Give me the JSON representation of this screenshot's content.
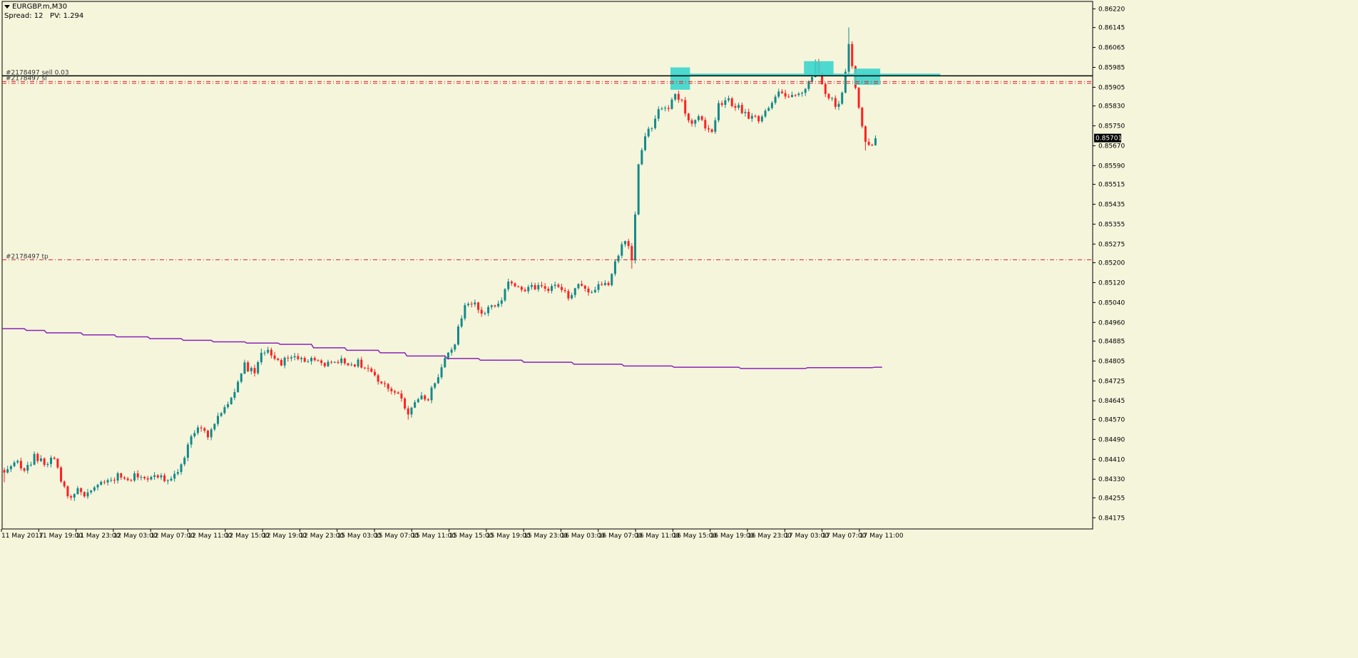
{
  "header": {
    "symbol": "EURGBP.m,M30",
    "spread_label": "Spread: 12",
    "pv_label": "PV: 1.294"
  },
  "colors": {
    "background": "#F5F5DC",
    "bull": "#138A8A",
    "bear": "#FF2020",
    "ma": "#8B22B8",
    "levels": "#E0202A",
    "entry": "#000000",
    "zones": "#3CD6CC",
    "axis": "#000000"
  },
  "chart_data": {
    "type": "candlestick",
    "symbol": "EURGBP.m",
    "timeframe": "M30",
    "y_range": [
      0.8413,
      0.8625
    ],
    "price_ticks": [
      "0.86220",
      "0.86145",
      "0.86065",
      "0.85985",
      "0.85905",
      "0.85830",
      "0.85750",
      "0.85670",
      "0.85590",
      "0.85515",
      "0.85435",
      "0.85355",
      "0.85275",
      "0.85200",
      "0.85120",
      "0.85040",
      "0.84960",
      "0.84885",
      "0.84805",
      "0.84725",
      "0.84645",
      "0.84570",
      "0.84490",
      "0.84410",
      "0.84330",
      "0.84255",
      "0.84175"
    ],
    "time_labels": [
      "11 May 2017",
      "11 May 19:00",
      "11 May 23:00",
      "12 May 03:00",
      "12 May 07:00",
      "12 May 11:00",
      "12 May 15:00",
      "12 May 19:00",
      "12 May 23:00",
      "15 May 03:00",
      "15 May 07:00",
      "15 May 11:00",
      "15 May 15:00",
      "15 May 19:00",
      "15 May 23:00",
      "16 May 03:00",
      "16 May 07:00",
      "16 May 11:00",
      "16 May 15:00",
      "16 May 19:00",
      "16 May 23:00",
      "17 May 03:00",
      "17 May 07:00",
      "17 May 11:00"
    ],
    "current_price": "0.85701",
    "horizontal_lines": [
      {
        "label": "#2178497 sell 0.03",
        "price": 0.85951,
        "style": "solid",
        "color": "#000000"
      },
      {
        "label": "#2178497 sl",
        "price": 0.85928,
        "style": "dashdot",
        "color": "#E0202A"
      },
      {
        "label": "",
        "price": 0.85921,
        "style": "dashdot",
        "color": "#E0202A"
      },
      {
        "label": "#2178497 tp",
        "price": 0.85212,
        "style": "dashdot",
        "color": "#E0202A"
      }
    ],
    "moving_average": {
      "start": 0.84935,
      "steps": [
        [
          6,
          0.84928
        ],
        [
          12,
          0.84918
        ],
        [
          23,
          0.8491
        ],
        [
          33,
          0.84902
        ],
        [
          43,
          0.84895
        ],
        [
          53,
          0.84888
        ],
        [
          62,
          0.84882
        ],
        [
          72,
          0.84877
        ],
        [
          82,
          0.84872
        ],
        [
          92,
          0.84858
        ],
        [
          102,
          0.84848
        ],
        [
          112,
          0.84838
        ],
        [
          120,
          0.84825
        ],
        [
          132,
          0.84815
        ],
        [
          142,
          0.84808
        ],
        [
          155,
          0.848
        ],
        [
          170,
          0.84792
        ],
        [
          185,
          0.84785
        ],
        [
          200,
          0.8478
        ],
        [
          220,
          0.84775
        ],
        [
          240,
          0.84778
        ],
        [
          260,
          0.8478
        ]
      ],
      "end_index": 263
    },
    "zones": [
      {
        "start": 200,
        "end": 205,
        "low": 0.85895,
        "high": 0.85985
      },
      {
        "start": 200,
        "end": 280,
        "low": 0.8595,
        "high": 0.8596
      },
      {
        "start": 240,
        "end": 248,
        "low": 0.8595,
        "high": 0.8601
      },
      {
        "start": 255,
        "end": 262,
        "low": 0.85915,
        "high": 0.8598
      }
    ],
    "anchors": [
      [
        0,
        0.8435,
        -0.0003
      ],
      [
        3,
        0.8441,
        0
      ],
      [
        6,
        0.8436,
        0
      ],
      [
        9,
        0.8442,
        0
      ],
      [
        12,
        0.8439,
        0
      ],
      [
        15,
        0.8442,
        0
      ],
      [
        17,
        0.8433,
        0
      ],
      [
        19,
        0.8426,
        -5e-05
      ],
      [
        22,
        0.8428,
        0
      ],
      [
        25,
        0.8427,
        0
      ],
      [
        28,
        0.843,
        0
      ],
      [
        31,
        0.8432,
        0
      ],
      [
        34,
        0.8434,
        0
      ],
      [
        37,
        0.8432,
        0
      ],
      [
        40,
        0.8435,
        0
      ],
      [
        43,
        0.8433,
        0
      ],
      [
        46,
        0.8434,
        0
      ],
      [
        50,
        0.8433,
        0
      ],
      [
        52,
        0.8437,
        0
      ],
      [
        55,
        0.8446,
        0
      ],
      [
        58,
        0.8455,
        0
      ],
      [
        61,
        0.8451,
        0
      ],
      [
        64,
        0.8459,
        0
      ],
      [
        67,
        0.8462,
        0
      ],
      [
        70,
        0.8471,
        0
      ],
      [
        72,
        0.8479,
        0
      ],
      [
        75,
        0.8475,
        0
      ],
      [
        77,
        0.8485,
        0.0001
      ],
      [
        80,
        0.8483,
        0
      ],
      [
        83,
        0.848,
        0
      ],
      [
        87,
        0.8482,
        0
      ],
      [
        90,
        0.8481,
        0
      ],
      [
        93,
        0.848,
        0
      ],
      [
        97,
        0.8479,
        0
      ],
      [
        100,
        0.8481,
        0
      ],
      [
        103,
        0.8479,
        0
      ],
      [
        106,
        0.848,
        0
      ],
      [
        109,
        0.8477,
        0
      ],
      [
        112,
        0.8472,
        0
      ],
      [
        115,
        0.8469,
        0
      ],
      [
        118,
        0.8468,
        0
      ],
      [
        121,
        0.846,
        -0.0001
      ],
      [
        124,
        0.8465,
        0
      ],
      [
        127,
        0.8466,
        0
      ],
      [
        130,
        0.8475,
        0
      ],
      [
        132,
        0.8482,
        0
      ],
      [
        134,
        0.8484,
        0
      ],
      [
        136,
        0.8493,
        0
      ],
      [
        138,
        0.8502,
        0
      ],
      [
        141,
        0.8504,
        0
      ],
      [
        143,
        0.85,
        0
      ],
      [
        146,
        0.8502,
        0
      ],
      [
        149,
        0.8506,
        0
      ],
      [
        151,
        0.8512,
        0
      ],
      [
        154,
        0.8511,
        0
      ],
      [
        157,
        0.8509,
        0
      ],
      [
        160,
        0.8511,
        0
      ],
      [
        163,
        0.8509,
        0
      ],
      [
        166,
        0.8511,
        0
      ],
      [
        169,
        0.8506,
        0
      ],
      [
        172,
        0.8511,
        0
      ],
      [
        175,
        0.8508,
        0
      ],
      [
        178,
        0.851,
        0
      ],
      [
        181,
        0.8512,
        0
      ],
      [
        183,
        0.852,
        0
      ],
      [
        186,
        0.853,
        0
      ],
      [
        188,
        0.8521,
        -0.0003
      ],
      [
        190,
        0.8559,
        0
      ],
      [
        192,
        0.857,
        0
      ],
      [
        194,
        0.8575,
        0
      ],
      [
        196,
        0.8581,
        0
      ],
      [
        199,
        0.8582,
        0
      ],
      [
        201,
        0.8587,
        0
      ],
      [
        203,
        0.8584,
        0
      ],
      [
        206,
        0.8575,
        0
      ],
      [
        208,
        0.8579,
        0
      ],
      [
        210,
        0.8574,
        0
      ],
      [
        212,
        0.8573,
        0
      ],
      [
        214,
        0.8583,
        0
      ],
      [
        217,
        0.8585,
        0
      ],
      [
        220,
        0.8582,
        0
      ],
      [
        223,
        0.8579,
        0
      ],
      [
        226,
        0.8578,
        0
      ],
      [
        229,
        0.8583,
        0
      ],
      [
        232,
        0.8589,
        0
      ],
      [
        235,
        0.8586,
        0
      ],
      [
        238,
        0.8588,
        0
      ],
      [
        241,
        0.8592,
        0
      ],
      [
        243,
        0.86,
        0
      ],
      [
        245,
        0.8591,
        0
      ],
      [
        248,
        0.8585,
        0
      ],
      [
        250,
        0.8583,
        0
      ],
      [
        252,
        0.8596,
        0
      ],
      [
        253,
        0.8608,
        0.0006
      ],
      [
        255,
        0.859,
        0
      ],
      [
        257,
        0.8575,
        0
      ],
      [
        258,
        0.8569,
        -0.0003
      ],
      [
        260,
        0.8568,
        0
      ],
      [
        261,
        0.857,
        0
      ]
    ]
  }
}
